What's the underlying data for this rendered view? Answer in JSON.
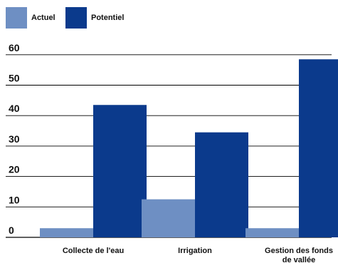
{
  "chart_data": {
    "type": "bar",
    "categories": [
      [
        "Collecte de l'eau"
      ],
      [
        "Irrigation"
      ],
      [
        "Gestion des fonds",
        "de vallée"
      ]
    ],
    "series": [
      {
        "name": "Actuel",
        "color": "#6e8fc3",
        "values": [
          3,
          12.5,
          3
        ]
      },
      {
        "name": "Potentiel",
        "color": "#0b3a8c",
        "values": [
          43.5,
          34.5,
          58.5
        ]
      }
    ],
    "y_ticks": [
      0,
      10,
      20,
      30,
      40,
      50,
      60
    ],
    "ylim": [
      0,
      62
    ],
    "grid": true,
    "legend_position": "top-left",
    "title": "",
    "xlabel": "",
    "ylabel": ""
  }
}
